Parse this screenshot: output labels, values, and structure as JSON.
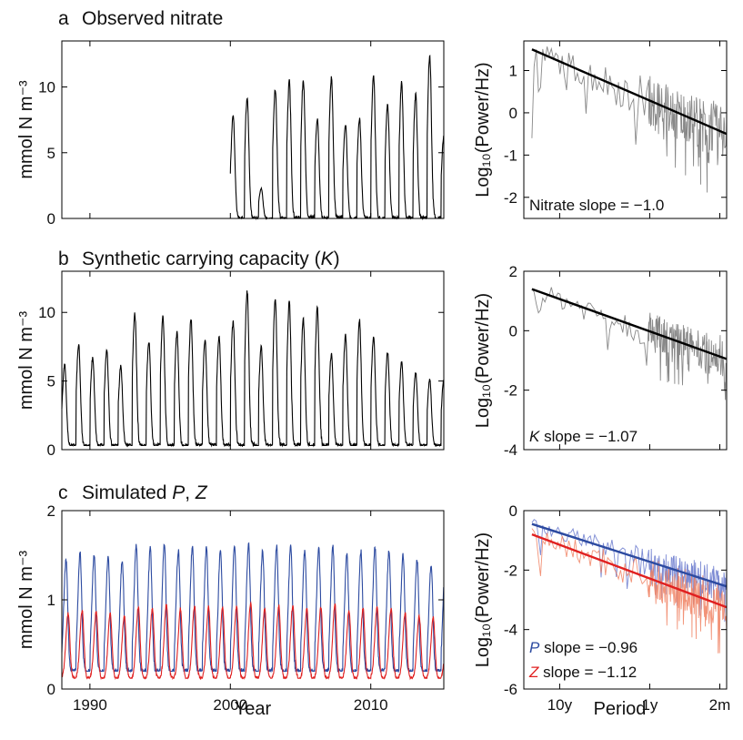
{
  "panels": [
    {
      "id": "a",
      "letter": "a",
      "title": "Observed nitrate",
      "title_parts": [
        {
          "text": "Observed nitrate",
          "italic": false
        }
      ],
      "ylabel": "mmol N m⁻³",
      "spectrum": {
        "ylabel": "Log₁₀(Power/Hz)",
        "annotation": [
          {
            "text": "Nitrate slope = −1.0",
            "italic": false,
            "color": "#111111"
          }
        ]
      }
    },
    {
      "id": "b",
      "letter": "b",
      "title": "Synthetic carrying capacity (K)",
      "title_parts": [
        {
          "text": "Synthetic carrying capacity (",
          "italic": false
        },
        {
          "text": "K",
          "italic": true
        },
        {
          "text": ")",
          "italic": false
        }
      ],
      "ylabel": "mmol N m⁻³",
      "spectrum": {
        "ylabel": "Log₁₀(Power/Hz)",
        "annotation": [
          {
            "text": "K",
            "italic": true,
            "color": "#111111"
          },
          {
            "text": " slope = −1.07",
            "italic": false,
            "color": "#111111"
          }
        ]
      }
    },
    {
      "id": "c",
      "letter": "c",
      "title": "Simulated P, Z",
      "title_parts": [
        {
          "text": "Simulated ",
          "italic": false
        },
        {
          "text": "P",
          "italic": true
        },
        {
          "text": ", ",
          "italic": false
        },
        {
          "text": "Z",
          "italic": true
        }
      ],
      "ylabel": "mmol N m⁻³",
      "xlabel": "Year",
      "spectrum": {
        "ylabel": "Log₁₀(Power/Hz)",
        "xlabel": "Period",
        "annotations": [
          [
            {
              "text": "P",
              "italic": true,
              "color": "#2c4aa0"
            },
            {
              "text": " slope = −0.96",
              "italic": false,
              "color": "#111111"
            }
          ],
          [
            {
              "text": "Z",
              "italic": true,
              "color": "#e02020"
            },
            {
              "text": " slope = −1.12",
              "italic": false,
              "color": "#111111"
            }
          ]
        ]
      }
    }
  ],
  "chart_data": [
    {
      "id": "a-timeseries",
      "type": "line",
      "title": "Observed nitrate",
      "xlabel": "",
      "ylabel": "mmol N m⁻³",
      "xlim": [
        1988,
        2015.2
      ],
      "ylim": [
        0,
        13.5
      ],
      "xticks": [
        1990,
        2000,
        2010
      ],
      "xtick_labels": [],
      "yticks": [
        0,
        5,
        10
      ],
      "ytick_labels": [
        "0",
        "5",
        "10"
      ],
      "grid": false,
      "series": [
        {
          "color": "#000000",
          "kind": "seasonal",
          "start": 2000.0,
          "end": 2015.2,
          "baseline": 0,
          "peak_phase": 0.2,
          "peaks": [
            {
              "year": 2000,
              "peak": 7.8
            },
            {
              "year": 2001,
              "peak": 9.2
            },
            {
              "year": 2002,
              "peak": 2.3
            },
            {
              "year": 2003,
              "peak": 9.8
            },
            {
              "year": 2004,
              "peak": 10.4
            },
            {
              "year": 2005,
              "peak": 10.6
            },
            {
              "year": 2006,
              "peak": 7.5
            },
            {
              "year": 2007,
              "peak": 10.8
            },
            {
              "year": 2008,
              "peak": 7.2
            },
            {
              "year": 2009,
              "peak": 7.6
            },
            {
              "year": 2010,
              "peak": 10.9
            },
            {
              "year": 2011,
              "peak": 8.6
            },
            {
              "year": 2012,
              "peak": 10.3
            },
            {
              "year": 2013,
              "peak": 9.4
            },
            {
              "year": 2014,
              "peak": 12.4
            },
            {
              "year": 2015,
              "peak": 6.2
            }
          ]
        }
      ]
    },
    {
      "id": "a-spectrum",
      "type": "line",
      "xlabel": "",
      "ylabel": "Log₁₀(Power/Hz)",
      "x_scale": "log-frequency",
      "x_period_range_years": [
        25,
        0.14
      ],
      "xtick_periods_years": [
        10,
        1,
        0.1667
      ],
      "xtick_labels": [],
      "ylim": [
        -2.5,
        1.7
      ],
      "yticks": [
        -2,
        -1,
        0,
        1
      ],
      "ytick_labels": [
        "-2",
        "-1",
        "0",
        "1"
      ],
      "grid": false,
      "series": [
        {
          "kind": "spectrum",
          "color": "#888888",
          "opacity": 1,
          "slope": -1.0,
          "noise": 0.55,
          "fit_start": 1.5,
          "fit_end": -0.5,
          "raw_start": [
            -0.6,
            1.1,
            1.5,
            0.5,
            0.6
          ]
        },
        {
          "kind": "fit",
          "color": "#000000",
          "slope": -1.0,
          "fit_start": 1.5,
          "fit_end": -0.5
        }
      ]
    },
    {
      "id": "b-timeseries",
      "type": "line",
      "title": "Synthetic carrying capacity (K)",
      "xlabel": "",
      "ylabel": "mmol N m⁻³",
      "xlim": [
        1988,
        2015.2
      ],
      "ylim": [
        0,
        13
      ],
      "xticks": [
        1990,
        2000,
        2010
      ],
      "xtick_labels": [],
      "yticks": [
        0,
        5,
        10
      ],
      "ytick_labels": [
        "0",
        "5",
        "10"
      ],
      "grid": false,
      "series": [
        {
          "color": "#000000",
          "kind": "seasonal",
          "start": 1988.0,
          "end": 2015.2,
          "baseline": 0.3,
          "peak_phase": 0.2,
          "peaks": [
            {
              "year": 1988,
              "peak": 6.2
            },
            {
              "year": 1989,
              "peak": 7.6
            },
            {
              "year": 1990,
              "peak": 6.7
            },
            {
              "year": 1991,
              "peak": 7.3
            },
            {
              "year": 1992,
              "peak": 6.1
            },
            {
              "year": 1993,
              "peak": 9.9
            },
            {
              "year": 1994,
              "peak": 7.9
            },
            {
              "year": 1995,
              "peak": 9.8
            },
            {
              "year": 1996,
              "peak": 8.5
            },
            {
              "year": 1997,
              "peak": 9.5
            },
            {
              "year": 1998,
              "peak": 7.9
            },
            {
              "year": 1999,
              "peak": 8.2
            },
            {
              "year": 2000,
              "peak": 9.3
            },
            {
              "year": 2001,
              "peak": 11.5
            },
            {
              "year": 2002,
              "peak": 7.5
            },
            {
              "year": 2003,
              "peak": 10.9
            },
            {
              "year": 2004,
              "peak": 10.7
            },
            {
              "year": 2005,
              "peak": 9.5
            },
            {
              "year": 2006,
              "peak": 10.3
            },
            {
              "year": 2007,
              "peak": 7.0
            },
            {
              "year": 2008,
              "peak": 8.3
            },
            {
              "year": 2009,
              "peak": 9.4
            },
            {
              "year": 2010,
              "peak": 8.3
            },
            {
              "year": 2011,
              "peak": 7.1
            },
            {
              "year": 2012,
              "peak": 6.4
            },
            {
              "year": 2013,
              "peak": 5.6
            },
            {
              "year": 2014,
              "peak": 5.1
            }
          ]
        }
      ]
    },
    {
      "id": "b-spectrum",
      "type": "line",
      "xlabel": "",
      "ylabel": "Log₁₀(Power/Hz)",
      "x_scale": "log-frequency",
      "x_period_range_years": [
        25,
        0.14
      ],
      "xtick_periods_years": [
        10,
        1,
        0.1667
      ],
      "xtick_labels": [],
      "ylim": [
        -4,
        2
      ],
      "yticks": [
        -4,
        -2,
        0,
        2
      ],
      "ytick_labels": [
        "-4",
        "-2",
        "0",
        "2"
      ],
      "grid": false,
      "series": [
        {
          "kind": "spectrum",
          "color": "#888888",
          "opacity": 1,
          "slope": -1.07,
          "noise": 0.6,
          "fit_start": 1.4,
          "fit_end": -0.95,
          "raw_start": [
            1.4,
            1.3,
            0.9,
            0.6,
            0.7
          ]
        },
        {
          "kind": "fit",
          "color": "#000000",
          "slope": -1.07,
          "fit_start": 1.4,
          "fit_end": -0.95
        }
      ]
    },
    {
      "id": "c-timeseries",
      "type": "line",
      "title": "Simulated P, Z",
      "xlabel": "Year",
      "ylabel": "mmol N m⁻³",
      "xlim": [
        1988,
        2015.2
      ],
      "ylim": [
        0,
        2
      ],
      "xticks": [
        1990,
        2000,
        2010
      ],
      "xtick_labels": [
        "1990",
        "2000",
        "2010"
      ],
      "yticks": [
        0,
        1,
        2
      ],
      "ytick_labels": [
        "0",
        "1",
        "2"
      ],
      "grid": false,
      "series": [
        {
          "name": "P",
          "color": "#2c4aa0",
          "kind": "seasonal",
          "start": 1988.0,
          "end": 2015.2,
          "baseline": 0.2,
          "peak_phase": 0.3,
          "peaks": [
            {
              "year": 1988,
              "peak": 1.45
            },
            {
              "year": 1989,
              "peak": 1.52
            },
            {
              "year": 1990,
              "peak": 1.5
            },
            {
              "year": 1991,
              "peak": 1.48
            },
            {
              "year": 1992,
              "peak": 1.45
            },
            {
              "year": 1993,
              "peak": 1.6
            },
            {
              "year": 1994,
              "peak": 1.58
            },
            {
              "year": 1995,
              "peak": 1.62
            },
            {
              "year": 1996,
              "peak": 1.55
            },
            {
              "year": 1997,
              "peak": 1.6
            },
            {
              "year": 1998,
              "peak": 1.58
            },
            {
              "year": 1999,
              "peak": 1.57
            },
            {
              "year": 2000,
              "peak": 1.6
            },
            {
              "year": 2001,
              "peak": 1.62
            },
            {
              "year": 2002,
              "peak": 1.55
            },
            {
              "year": 2003,
              "peak": 1.6
            },
            {
              "year": 2004,
              "peak": 1.6
            },
            {
              "year": 2005,
              "peak": 1.55
            },
            {
              "year": 2006,
              "peak": 1.58
            },
            {
              "year": 2007,
              "peak": 1.6
            },
            {
              "year": 2008,
              "peak": 1.5
            },
            {
              "year": 2009,
              "peak": 1.55
            },
            {
              "year": 2010,
              "peak": 1.58
            },
            {
              "year": 2011,
              "peak": 1.55
            },
            {
              "year": 2012,
              "peak": 1.5
            },
            {
              "year": 2013,
              "peak": 1.45
            },
            {
              "year": 2014,
              "peak": 1.38
            }
          ]
        },
        {
          "name": "Z",
          "color": "#e02020",
          "kind": "seasonal",
          "start": 1988.0,
          "end": 2015.2,
          "baseline": 0.12,
          "peak_phase": 0.45,
          "peaks": [
            {
              "year": 1988,
              "peak": 0.85
            },
            {
              "year": 1989,
              "peak": 0.88
            },
            {
              "year": 1990,
              "peak": 0.86
            },
            {
              "year": 1991,
              "peak": 0.85
            },
            {
              "year": 1992,
              "peak": 0.82
            },
            {
              "year": 1993,
              "peak": 0.92
            },
            {
              "year": 1994,
              "peak": 0.9
            },
            {
              "year": 1995,
              "peak": 0.95
            },
            {
              "year": 1996,
              "peak": 0.9
            },
            {
              "year": 1997,
              "peak": 0.93
            },
            {
              "year": 1998,
              "peak": 0.92
            },
            {
              "year": 1999,
              "peak": 0.91
            },
            {
              "year": 2000,
              "peak": 0.93
            },
            {
              "year": 2001,
              "peak": 0.97
            },
            {
              "year": 2002,
              "peak": 0.9
            },
            {
              "year": 2003,
              "peak": 0.93
            },
            {
              "year": 2004,
              "peak": 0.94
            },
            {
              "year": 2005,
              "peak": 0.9
            },
            {
              "year": 2006,
              "peak": 0.92
            },
            {
              "year": 2007,
              "peak": 0.95
            },
            {
              "year": 2008,
              "peak": 0.88
            },
            {
              "year": 2009,
              "peak": 0.9
            },
            {
              "year": 2010,
              "peak": 0.92
            },
            {
              "year": 2011,
              "peak": 0.9
            },
            {
              "year": 2012,
              "peak": 0.85
            },
            {
              "year": 2013,
              "peak": 0.82
            },
            {
              "year": 2014,
              "peak": 0.8
            }
          ]
        }
      ]
    },
    {
      "id": "c-spectrum",
      "type": "line",
      "xlabel": "Period",
      "ylabel": "Log₁₀(Power/Hz)",
      "x_scale": "log-frequency",
      "x_period_range_years": [
        25,
        0.14
      ],
      "xtick_periods_years": [
        10,
        1,
        0.1667
      ],
      "xtick_labels": [
        "10y",
        "1y",
        "2m"
      ],
      "ylim": [
        -6,
        0
      ],
      "yticks": [
        -6,
        -4,
        -2,
        0
      ],
      "ytick_labels": [
        "-6",
        "-4",
        "-2",
        "0"
      ],
      "grid": false,
      "series": [
        {
          "name": "P",
          "kind": "spectrum",
          "color": "#6677cc",
          "opacity": 0.85,
          "slope": -0.96,
          "noise": 0.5,
          "fit_start": -0.45,
          "fit_end": -2.55,
          "raw_start": [
            -0.4,
            -0.3,
            -0.35,
            -0.9,
            -1.5
          ]
        },
        {
          "name": "Z",
          "kind": "spectrum",
          "color": "#f08060",
          "opacity": 0.85,
          "slope": -1.12,
          "noise": 0.65,
          "fit_start": -0.8,
          "fit_end": -3.25,
          "raw_start": [
            -0.6,
            -0.7,
            -0.9,
            -1.6,
            -2.2
          ]
        },
        {
          "name": "P",
          "kind": "fit",
          "color": "#2c4aa0",
          "slope": -0.96,
          "fit_start": -0.45,
          "fit_end": -2.55
        },
        {
          "name": "Z",
          "kind": "fit",
          "color": "#e02020",
          "slope": -1.12,
          "fit_start": -0.8,
          "fit_end": -3.25
        }
      ]
    }
  ]
}
